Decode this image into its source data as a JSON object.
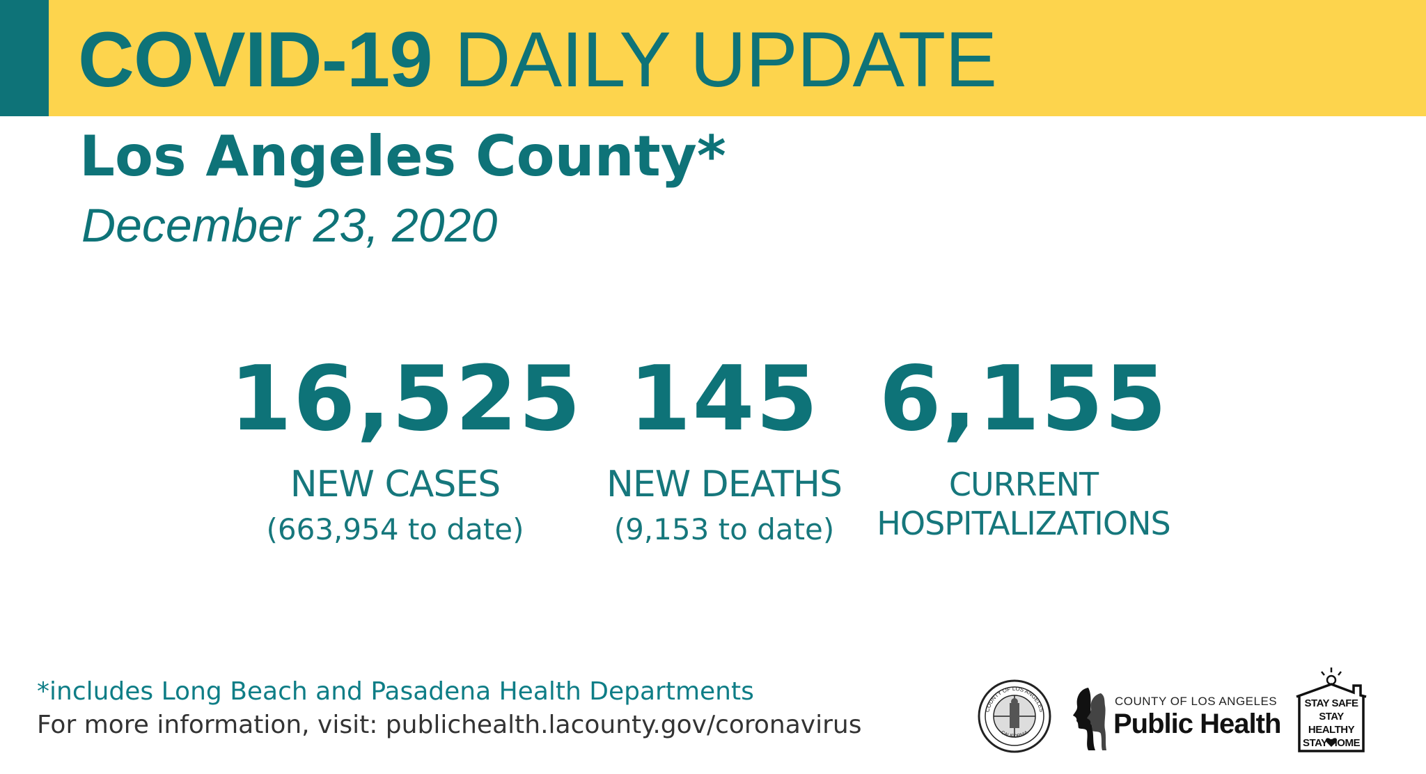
{
  "header": {
    "title_bold": "COVID-19",
    "title_rest": "DAILY UPDATE"
  },
  "county": "Los Angeles County*",
  "date": "December 23, 2020",
  "stats": {
    "cases": {
      "number": "16,525",
      "label": "NEW CASES",
      "to_date": "(663,954 to date)"
    },
    "deaths": {
      "number": "145",
      "label": "NEW DEATHS",
      "to_date": "(9,153 to date)"
    },
    "hospitalizations": {
      "number": "6,155",
      "label_line1": "CURRENT",
      "label_line2": "HOSPITALIZATIONS"
    }
  },
  "footer": {
    "footnote": "*includes Long Beach and Pasadena Health Departments",
    "more_info": "For more information, visit: publichealth.lacounty.gov/coronavirus"
  },
  "logos": {
    "seal_text_top": "COUNTY OF LOS ANGELES",
    "seal_text_bottom": "CALIFORNIA",
    "public_health_small": "COUNTY OF LOS ANGELES",
    "public_health_big": "Public Health",
    "stay_lines": [
      "STAY SAFE",
      "STAY HEALTHY",
      "STAY HOME"
    ]
  },
  "colors": {
    "teal": "#0e7378",
    "yellow": "#fdd44d",
    "footnote_teal": "#0e7d86"
  }
}
